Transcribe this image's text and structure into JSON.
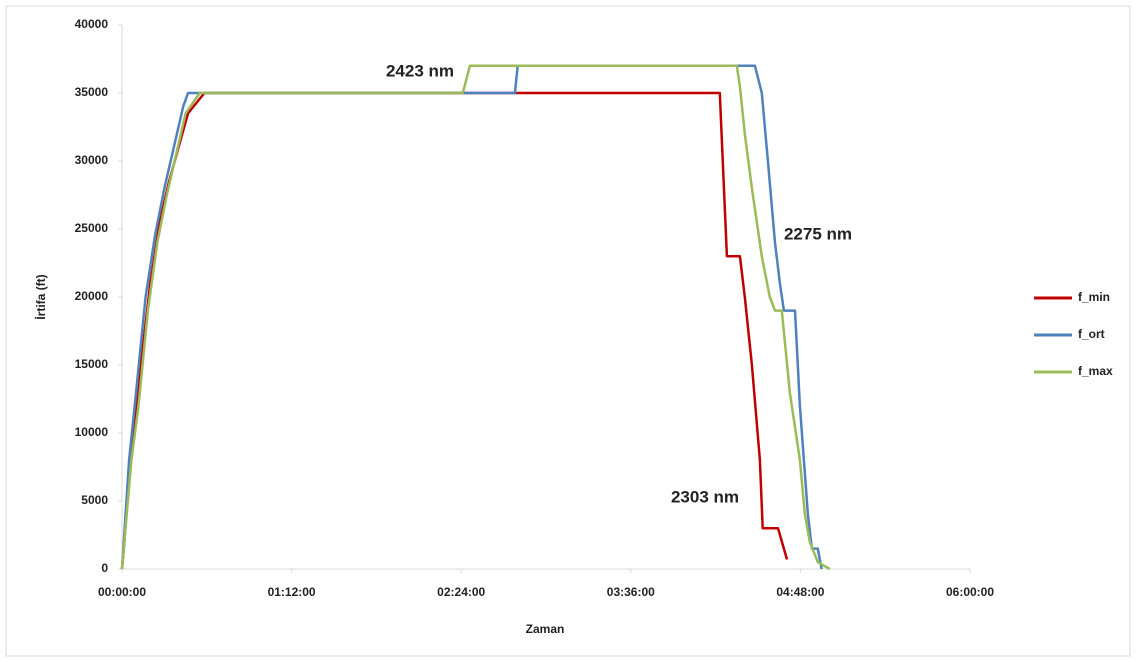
{
  "chart_data": {
    "type": "line",
    "x_label": "Zaman",
    "y_label": "İrtifa (ft)",
    "xlim": [
      0,
      360
    ],
    "ylim": [
      0,
      40000
    ],
    "xticks": [
      {
        "value": 0,
        "label": "00:00:00"
      },
      {
        "value": 72,
        "label": "01:12:00"
      },
      {
        "value": 144,
        "label": "02:24:00"
      },
      {
        "value": 216,
        "label": "03:36:00"
      },
      {
        "value": 288,
        "label": "04:48:00"
      },
      {
        "value": 360,
        "label": "06:00:00"
      }
    ],
    "yticks": [
      0,
      5000,
      10000,
      15000,
      20000,
      25000,
      30000,
      35000,
      40000
    ],
    "grid": false,
    "legend": "right",
    "series": [
      {
        "name": "f_min",
        "color": "#c00000",
        "x": [
          0,
          1,
          3,
          6,
          8,
          12,
          16,
          20,
          24,
          28,
          35,
          253.8,
          256.8,
          262.3,
          264.4,
          267.4,
          270.8,
          272,
          278.5,
          282.3
        ],
        "values": [
          0,
          2000,
          7000,
          12000,
          15000,
          21000,
          25500,
          28500,
          31000,
          33500,
          35000,
          35000,
          23000,
          23000,
          20000,
          15000,
          8000,
          3000,
          3000,
          700
        ]
      },
      {
        "name": "f_ort",
        "color": "#4f81bd",
        "x": [
          0,
          3,
          6,
          10,
          14,
          18,
          22,
          26,
          28,
          166.8,
          168,
          268.7,
          271.6,
          274.2,
          277.2,
          279.3,
          281,
          285.7,
          287.8,
          291.2,
          292.9,
          295.4,
          297
        ],
        "values": [
          0,
          8000,
          13000,
          20000,
          24500,
          28000,
          31000,
          34000,
          35000,
          35000,
          37000,
          37000,
          35000,
          30000,
          24000,
          21000,
          19000,
          19000,
          12000,
          4000,
          1500,
          1500,
          0
        ]
      },
      {
        "name": "f_max",
        "color": "#9bbb59",
        "x": [
          0,
          4,
          7,
          11,
          15,
          19,
          23,
          27,
          33,
          144.7,
          147.7,
          261,
          262.3,
          264.4,
          267.4,
          271.6,
          275,
          277.2,
          280.1,
          283.5,
          287.8,
          289.9,
          292,
          295.4,
          300.5
        ],
        "values": [
          0,
          8000,
          12000,
          19000,
          24000,
          27500,
          30500,
          33500,
          35000,
          35000,
          37000,
          37000,
          35500,
          32000,
          28000,
          23000,
          20000,
          19000,
          19000,
          13000,
          8000,
          4000,
          2000,
          500,
          0
        ]
      }
    ],
    "annotations": [
      "2423 nm",
      "2275 nm",
      "2303 nm"
    ]
  }
}
